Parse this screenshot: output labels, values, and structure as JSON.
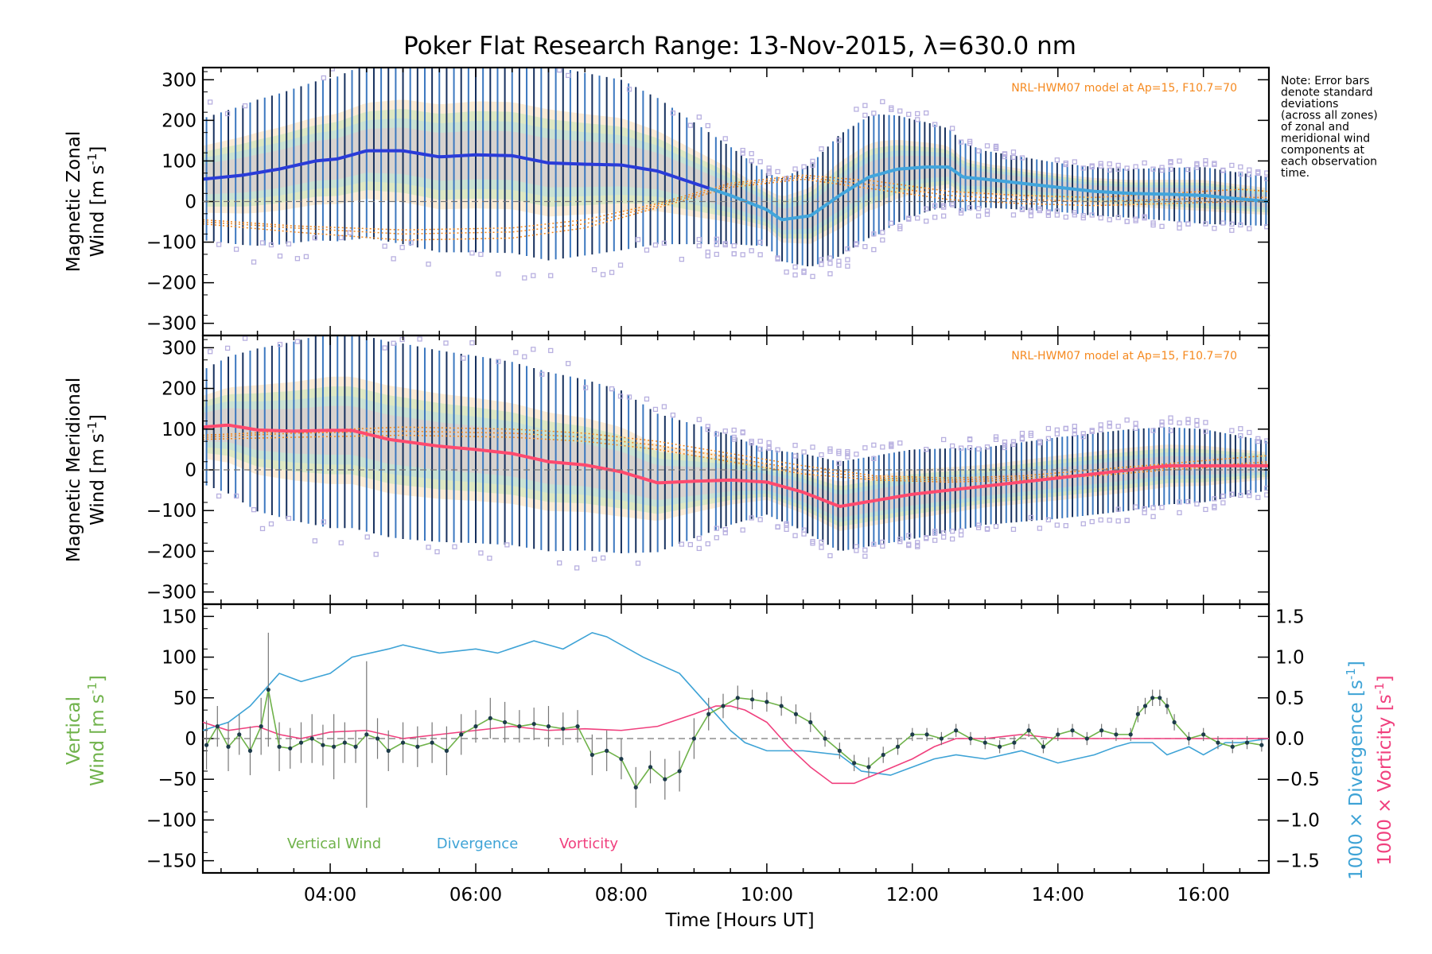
{
  "title": "Poker Flat Research Range: 13-Nov-2015, λ=630.0 nm",
  "note_lines": [
    "Note: Error bars",
    "denote standard",
    "deviations",
    "(across all zones)",
    "of zonal and",
    "meridional wind",
    "components at",
    "each observation",
    "time."
  ],
  "x_axis": {
    "label": "Time [Hours UT]",
    "range": [
      2.25,
      16.9
    ],
    "ticks": [
      4,
      6,
      8,
      10,
      12,
      14,
      16
    ],
    "tick_labels": [
      "04:00",
      "06:00",
      "08:00",
      "10:00",
      "12:00",
      "14:00",
      "16:00"
    ]
  },
  "colors": {
    "zonal_dark": "#2a3bd8",
    "zonal_light": "#42a5dc",
    "meridional": "#ff4a6e",
    "model": "#f5891f",
    "errorbar_dark": "#16305e",
    "errorbar_blue": "#3c78c0",
    "zone_points": "#b8b0e0",
    "vertical": "#6fb24a",
    "divergence": "#3ea3d6",
    "vorticity": "#f0407e",
    "zero_line": "#777777"
  },
  "chart_data": [
    {
      "type": "line",
      "panel": "zonal",
      "ylabel": [
        "Magnetic Zonal",
        "Wind [m s",
        "-1",
        "]"
      ],
      "ylim": [
        -330,
        330
      ],
      "yticks": [
        -300,
        -200,
        -100,
        0,
        100,
        200,
        300
      ],
      "model_label": "NRL-HWM07 model at Ap=15, F10.7=70",
      "series": [
        {
          "role": "mean wind",
          "x": [
            2.25,
            2.8,
            3.3,
            3.8,
            4.1,
            4.5,
            5.0,
            5.5,
            6.0,
            6.5,
            7.0,
            7.5,
            8.0,
            8.5,
            9.0,
            9.5,
            10.0,
            10.2,
            10.6,
            11.0,
            11.4,
            11.8,
            12.2,
            12.5,
            12.7,
            13.0,
            13.5,
            14.0,
            14.5,
            15.0,
            15.5,
            16.0,
            16.4,
            16.9
          ],
          "y": [
            55,
            65,
            80,
            100,
            105,
            125,
            125,
            110,
            115,
            113,
            95,
            92,
            90,
            75,
            45,
            15,
            -20,
            -45,
            -35,
            15,
            60,
            80,
            85,
            85,
            60,
            55,
            45,
            35,
            25,
            20,
            18,
            15,
            8,
            0
          ],
          "switch_x": 9.2
        },
        {
          "role": "model",
          "x": [
            2.25,
            3.5,
            5.0,
            6.5,
            7.5,
            8.5,
            9.5,
            10.5,
            11.5,
            12.5,
            13.5,
            14.5,
            15.5,
            16.5,
            16.9
          ],
          "y": [
            -50,
            -65,
            -80,
            -75,
            -55,
            -10,
            40,
            60,
            40,
            15,
            5,
            0,
            5,
            10,
            10
          ]
        },
        {
          "role": "model",
          "x": [
            2.25,
            3.5,
            5.0,
            6.5,
            7.5,
            8.5,
            9.5,
            10.5,
            11.5,
            12.5,
            13.5,
            14.5,
            15.5,
            16.5,
            16.9
          ],
          "y": [
            -55,
            -75,
            -95,
            -90,
            -65,
            -15,
            35,
            55,
            30,
            5,
            -5,
            -10,
            -5,
            0,
            5
          ]
        },
        {
          "role": "model",
          "x": [
            2.25,
            3.5,
            5.0,
            6.5,
            7.5,
            8.5,
            9.5,
            10.5,
            11.5,
            12.5,
            13.5,
            14.5,
            15.5,
            16.5,
            16.9
          ],
          "y": [
            -45,
            -60,
            -70,
            -65,
            -45,
            -5,
            45,
            65,
            50,
            25,
            15,
            10,
            20,
            30,
            25
          ]
        }
      ],
      "spread": {
        "x": [
          2.25,
          3.0,
          4.0,
          5.0,
          6.0,
          7.0,
          8.0,
          9.0,
          10.0,
          10.5,
          11.0,
          11.5,
          12.0,
          13.0,
          14.0,
          15.0,
          16.0,
          16.9
        ],
        "half_width": [
          150,
          180,
          200,
          230,
          240,
          240,
          210,
          150,
          90,
          120,
          150,
          150,
          120,
          70,
          60,
          60,
          70,
          60
        ]
      }
    },
    {
      "type": "line",
      "panel": "meridional",
      "ylabel": [
        "Magnetic Meridional",
        "Wind [m s",
        "-1",
        "]"
      ],
      "ylim": [
        -330,
        330
      ],
      "yticks": [
        -300,
        -200,
        -100,
        0,
        100,
        200,
        300
      ],
      "model_label": "NRL-HWM07 model at Ap=15, F10.7=70",
      "series": [
        {
          "role": "mean wind",
          "x": [
            2.25,
            2.6,
            3.0,
            3.5,
            4.0,
            4.3,
            4.8,
            5.5,
            6.0,
            6.5,
            7.0,
            7.5,
            8.0,
            8.5,
            9.0,
            9.5,
            10.0,
            10.5,
            11.0,
            11.5,
            12.0,
            12.5,
            13.0,
            13.5,
            14.0,
            14.5,
            15.0,
            15.5,
            16.0,
            16.9
          ],
          "y": [
            105,
            110,
            98,
            95,
            97,
            97,
            75,
            58,
            50,
            40,
            20,
            12,
            -5,
            -32,
            -28,
            -25,
            -30,
            -55,
            -90,
            -75,
            -60,
            -50,
            -40,
            -30,
            -20,
            -10,
            0,
            10,
            10,
            10
          ]
        },
        {
          "role": "model",
          "x": [
            2.25,
            3.5,
            5.0,
            6.5,
            7.5,
            8.5,
            9.5,
            10.5,
            11.5,
            12.5,
            13.5,
            14.5,
            15.5,
            16.5,
            16.9
          ],
          "y": [
            80,
            90,
            95,
            90,
            80,
            60,
            30,
            0,
            -20,
            -25,
            -20,
            -10,
            5,
            15,
            20
          ]
        },
        {
          "role": "model",
          "x": [
            2.25,
            3.5,
            5.0,
            6.5,
            7.5,
            8.5,
            9.5,
            10.5,
            11.5,
            12.5,
            13.5,
            14.5,
            15.5,
            16.5,
            16.9
          ],
          "y": [
            75,
            80,
            85,
            80,
            70,
            50,
            20,
            -10,
            -25,
            -30,
            -25,
            -15,
            0,
            10,
            15
          ]
        },
        {
          "role": "model",
          "x": [
            2.25,
            3.5,
            5.0,
            6.5,
            7.5,
            8.5,
            9.5,
            10.5,
            11.5,
            12.5,
            13.5,
            14.5,
            15.5,
            16.5,
            16.9
          ],
          "y": [
            85,
            95,
            105,
            100,
            90,
            70,
            40,
            10,
            -15,
            -20,
            -15,
            0,
            15,
            30,
            35
          ]
        }
      ],
      "spread": {
        "x": [
          2.25,
          3.0,
          4.0,
          5.0,
          6.0,
          7.0,
          8.0,
          9.0,
          10.0,
          11.0,
          12.0,
          13.0,
          14.0,
          15.0,
          16.0,
          16.9
        ],
        "half_width": [
          140,
          200,
          240,
          240,
          230,
          220,
          200,
          140,
          80,
          110,
          110,
          95,
          100,
          100,
          90,
          60
        ]
      }
    },
    {
      "type": "line",
      "panel": "vertical",
      "ylabel_left": [
        "Vertical",
        "Wind [m s",
        "-1",
        "]"
      ],
      "ylabel_right_divergence": [
        "1000 × Divergence [s",
        "-1",
        "]"
      ],
      "ylabel_right_vorticity": [
        "1000 × Vorticity [s",
        "-1",
        "]"
      ],
      "ylim": [
        -165,
        165
      ],
      "yticks": [
        -150,
        -100,
        -50,
        0,
        50,
        100,
        150
      ],
      "ylim_right": [
        -1.65,
        1.65
      ],
      "yticks_right": [
        -1.5,
        -1.0,
        -0.5,
        0.0,
        0.5,
        1.0,
        1.5
      ],
      "yticklabels_right": [
        "−1.5",
        "−1.0",
        "−0.5",
        "0.0",
        "0.5",
        "1.0",
        "1.5"
      ],
      "legend": [
        "Vertical Wind",
        "Divergence",
        "Vorticity"
      ],
      "series": [
        {
          "name": "Vertical Wind",
          "x": [
            2.3,
            2.45,
            2.6,
            2.75,
            2.9,
            3.05,
            3.15,
            3.3,
            3.45,
            3.6,
            3.75,
            3.9,
            4.05,
            4.2,
            4.35,
            4.5,
            4.65,
            4.8,
            5.0,
            5.2,
            5.4,
            5.6,
            5.8,
            6.0,
            6.2,
            6.4,
            6.6,
            6.8,
            7.0,
            7.2,
            7.4,
            7.6,
            7.8,
            8.0,
            8.2,
            8.4,
            8.6,
            8.8,
            9.0,
            9.2,
            9.4,
            9.6,
            9.8,
            10.0,
            10.2,
            10.4,
            10.6,
            10.8,
            11.0,
            11.2,
            11.4,
            11.6,
            11.8,
            12.0,
            12.2,
            12.4,
            12.6,
            12.8,
            13.0,
            13.2,
            13.4,
            13.6,
            13.8,
            14.0,
            14.2,
            14.4,
            14.6,
            14.8,
            15.0,
            15.1,
            15.2,
            15.3,
            15.4,
            15.5,
            15.6,
            15.8,
            16.0,
            16.2,
            16.4,
            16.6,
            16.8
          ],
          "y": [
            -8,
            15,
            -10,
            5,
            -15,
            15,
            60,
            -10,
            -12,
            -5,
            0,
            -8,
            -10,
            -5,
            -10,
            5,
            0,
            -15,
            -5,
            -10,
            -5,
            -15,
            5,
            15,
            25,
            20,
            15,
            18,
            15,
            12,
            15,
            -20,
            -15,
            -25,
            -60,
            -35,
            -50,
            -40,
            0,
            30,
            40,
            50,
            48,
            45,
            40,
            30,
            20,
            0,
            -15,
            -30,
            -35,
            -20,
            -10,
            5,
            5,
            0,
            10,
            0,
            -5,
            -10,
            -5,
            10,
            -10,
            5,
            10,
            0,
            10,
            5,
            5,
            30,
            40,
            50,
            50,
            40,
            20,
            0,
            5,
            -5,
            -10,
            -5,
            -8
          ]
        },
        {
          "name": "Divergence",
          "x": [
            2.25,
            2.6,
            2.9,
            3.1,
            3.3,
            3.6,
            4.0,
            4.3,
            4.8,
            5.0,
            5.5,
            6.0,
            6.3,
            6.8,
            7.2,
            7.6,
            7.8,
            8.3,
            8.8,
            9.2,
            9.5,
            9.7,
            10.0,
            10.5,
            11.0,
            11.3,
            11.7,
            12.0,
            12.3,
            12.6,
            13.0,
            13.5,
            14.0,
            14.5,
            14.8,
            15.0,
            15.3,
            15.5,
            15.8,
            16.0,
            16.3,
            16.5,
            16.9
          ],
          "y": [
            0.1,
            0.2,
            0.4,
            0.6,
            0.8,
            0.7,
            0.8,
            1.0,
            1.1,
            1.15,
            1.05,
            1.1,
            1.05,
            1.2,
            1.1,
            1.3,
            1.25,
            1.0,
            0.8,
            0.4,
            0.1,
            -0.05,
            -0.15,
            -0.15,
            -0.2,
            -0.4,
            -0.45,
            -0.35,
            -0.25,
            -0.2,
            -0.25,
            -0.15,
            -0.3,
            -0.2,
            -0.1,
            -0.05,
            -0.05,
            -0.2,
            -0.1,
            -0.2,
            -0.05,
            -0.05,
            0.0
          ]
        },
        {
          "name": "Vorticity",
          "x": [
            2.25,
            2.6,
            3.0,
            3.3,
            3.6,
            4.0,
            4.5,
            5.0,
            5.5,
            6.0,
            6.5,
            7.0,
            7.5,
            8.0,
            8.5,
            9.0,
            9.3,
            9.5,
            9.7,
            10.0,
            10.3,
            10.6,
            10.9,
            11.2,
            11.6,
            12.0,
            12.3,
            12.6,
            13.0,
            13.5,
            14.0,
            14.5,
            15.0,
            15.5,
            16.0,
            16.5,
            16.9
          ],
          "y": [
            0.2,
            0.1,
            0.15,
            0.05,
            0.0,
            0.08,
            0.1,
            0.0,
            0.05,
            0.1,
            0.15,
            0.1,
            0.12,
            0.1,
            0.15,
            0.3,
            0.4,
            0.4,
            0.35,
            0.2,
            -0.1,
            -0.35,
            -0.55,
            -0.55,
            -0.4,
            -0.25,
            -0.1,
            0.0,
            0.0,
            0.05,
            0.0,
            0.0,
            0.0,
            0.0,
            0.0,
            0.0,
            0.0
          ],
          "smoothness_note": ""
        }
      ],
      "errors": [
        30,
        25,
        30,
        25,
        30,
        35,
        70,
        30,
        25,
        25,
        30,
        25,
        40,
        25,
        20,
        90,
        25,
        25,
        25,
        25,
        25,
        30,
        25,
        20,
        25,
        25,
        20,
        20,
        25,
        20,
        20,
        25,
        25,
        25,
        25,
        20,
        25,
        25,
        25,
        20,
        15,
        15,
        12,
        12,
        12,
        12,
        12,
        10,
        10,
        10,
        12,
        10,
        10,
        8,
        8,
        8,
        8,
        8,
        8,
        8,
        8,
        8,
        8,
        8,
        8,
        8,
        8,
        8,
        8,
        10,
        10,
        10,
        10,
        10,
        10,
        8,
        8,
        8,
        8,
        8,
        8
      ]
    }
  ]
}
